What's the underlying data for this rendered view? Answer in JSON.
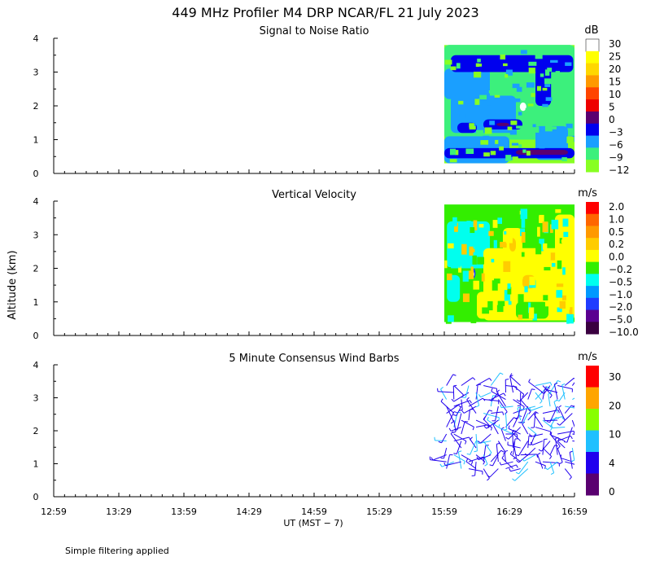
{
  "figure": {
    "title": "449 MHz Profiler M4 DRP NCAR/FL 21 July 2023",
    "ylabel": "Altitude (km)",
    "xlabel": "UT  (MST − 7)",
    "footnote": "Simple filtering applied"
  },
  "x_ticks": [
    "12:59",
    "13:29",
    "13:59",
    "14:29",
    "14:59",
    "15:29",
    "15:59",
    "16:29",
    "16:59"
  ],
  "y_ticks": [
    "0",
    "1",
    "2",
    "3",
    "4"
  ],
  "panels": [
    {
      "title": "Signal to Noise Ratio",
      "unit": "dB"
    },
    {
      "title": "Vertical Velocity",
      "unit": "m/s"
    },
    {
      "title": "5 Minute Consensus Wind Barbs",
      "unit": "m/s"
    }
  ],
  "chart_data": [
    {
      "type": "heatmap",
      "title": "Signal to Noise Ratio",
      "xlabel": "UT  (MST − 7)",
      "ylabel": "Altitude (km)",
      "x_range": [
        "12:59",
        "16:59"
      ],
      "y_range": [
        0,
        4
      ],
      "data_x_extent": [
        "15:59",
        "16:59"
      ],
      "data_y_extent": [
        0.3,
        3.8
      ],
      "colorbar": {
        "unit": "dB",
        "labels": [
          "30",
          "25",
          "20",
          "15",
          "10",
          "5",
          "0",
          "−3",
          "−6",
          "−9",
          "−12"
        ],
        "colors": [
          "#ffffff",
          "#ffff00",
          "#ffd700",
          "#ff9900",
          "#ff4500",
          "#ee0000",
          "#5a0070",
          "#0000ee",
          "#1a9fff",
          "#3cf07c",
          "#88ff22"
        ]
      },
      "features": [
        {
          "description": "high SNR band",
          "x": [
            "16:03",
            "16:59"
          ],
          "y": [
            3.05,
            3.5
          ],
          "value_db": -3
        },
        {
          "description": "high SNR column",
          "x": [
            "16:45",
            "16:53"
          ],
          "y": [
            1.9,
            3.1
          ],
          "value_db": -3
        },
        {
          "description": "low-level high SNR band",
          "x": [
            "15:59",
            "16:59"
          ],
          "y": [
            0.5,
            0.75
          ],
          "value_db": -3
        },
        {
          "description": "bright spot",
          "x": [
            "16:39",
            "16:42"
          ],
          "y": [
            1.85,
            2.1
          ],
          "value_db": 30
        }
      ]
    },
    {
      "type": "heatmap",
      "title": "Vertical Velocity",
      "xlabel": "UT  (MST − 7)",
      "ylabel": "Altitude (km)",
      "x_range": [
        "12:59",
        "16:59"
      ],
      "y_range": [
        0,
        4
      ],
      "data_x_extent": [
        "15:59",
        "16:59"
      ],
      "data_y_extent": [
        0.4,
        3.9
      ],
      "colorbar": {
        "unit": "m/s",
        "labels": [
          "2.0",
          "1.0",
          "0.5",
          "0.2",
          "0.0",
          "−0.2",
          "−0.5",
          "−1.0",
          "−2.0",
          "−5.0",
          "−10.0"
        ],
        "colors": [
          "#ff0000",
          "#ff6600",
          "#ff9900",
          "#ffcc00",
          "#ffff00",
          "#33ee00",
          "#00ffee",
          "#0099ff",
          "#1f3cff",
          "#5a0090",
          "#3a0040"
        ]
      },
      "features": [
        {
          "description": "downdraft area (cyan)",
          "x": [
            "15:59",
            "16:12"
          ],
          "y": [
            2.0,
            3.4
          ],
          "value_ms": -0.5
        },
        {
          "description": "updraft area (yellow)",
          "x": [
            "16:10",
            "16:59"
          ],
          "y": [
            0.4,
            2.7
          ],
          "value_ms": 0.0
        },
        {
          "description": "strong downdraft spot",
          "x": [
            "16:05",
            "16:07"
          ],
          "y": [
            1.7,
            2.0
          ],
          "value_ms": -2.0
        }
      ]
    },
    {
      "type": "scatter",
      "title": "5 Minute Consensus Wind Barbs",
      "xlabel": "UT  (MST − 7)",
      "ylabel": "Altitude (km)",
      "x_range": [
        "12:59",
        "16:59"
      ],
      "y_range": [
        0,
        4
      ],
      "data_x_extent": [
        "16:00",
        "16:59"
      ],
      "data_y_extent": [
        0.8,
        3.5
      ],
      "colorbar": {
        "unit": "m/s",
        "labels": [
          "30",
          "20",
          "10",
          "4",
          "0"
        ],
        "colors": [
          "#ff0000",
          "#ffa500",
          "#88ff00",
          "#1fc0ff",
          "#2000ee",
          "#5a0070"
        ]
      },
      "barb_speed_ms": "mostly 0–4, some 4–10"
    }
  ]
}
